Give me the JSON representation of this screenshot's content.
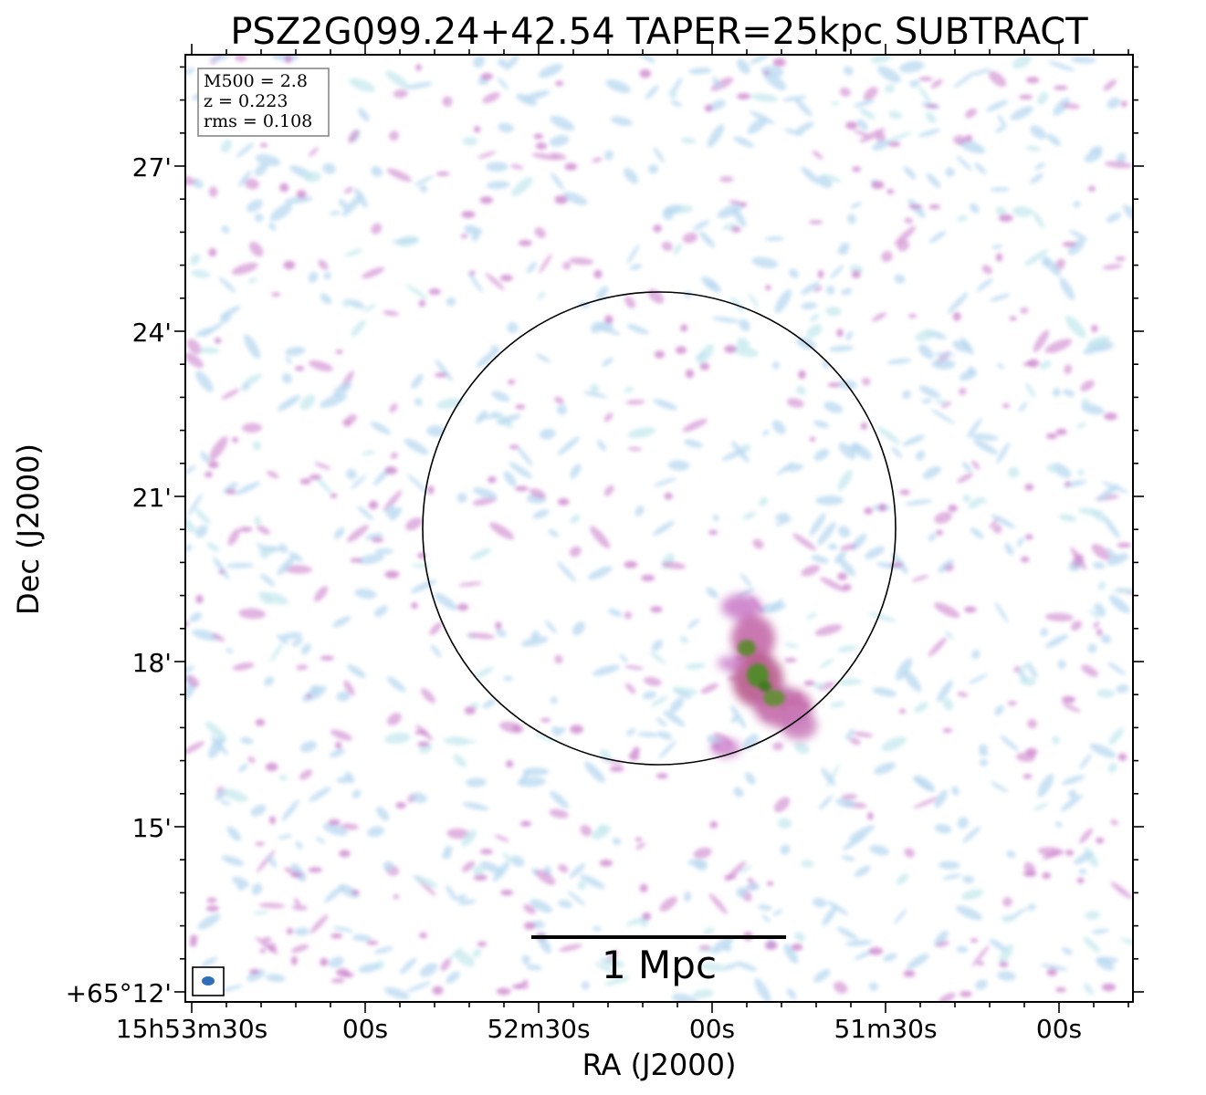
{
  "figure": {
    "title": "PSZ2G099.24+42.54 TAPER=25kpc SUBTRACT",
    "x_axis_label": "RA (J2000)",
    "y_axis_label": "Dec (J2000)",
    "x_tick_labels": [
      "15h53m30s",
      "00s",
      "52m30s",
      "00s",
      "51m30s",
      "00s"
    ],
    "y_tick_labels": [
      "27'",
      "24'",
      "21'",
      "18'",
      "15'",
      "+65°12'"
    ],
    "info_box": {
      "m500": "M500 = 2.8",
      "z": "z = 0.223",
      "rms": "rms = 0.108"
    },
    "scale_bar_label": "1 Mpc",
    "colors": {
      "noise_light": "#b8d8f0",
      "noise_cyan": "#c5e8ee",
      "emission_magenta": "#c878c8",
      "emission_core": "#5a8a2a",
      "beam": "#2f6fb8",
      "circle": "#000000"
    },
    "overlay": "R500 circle",
    "beam_marker": "ellipse"
  }
}
